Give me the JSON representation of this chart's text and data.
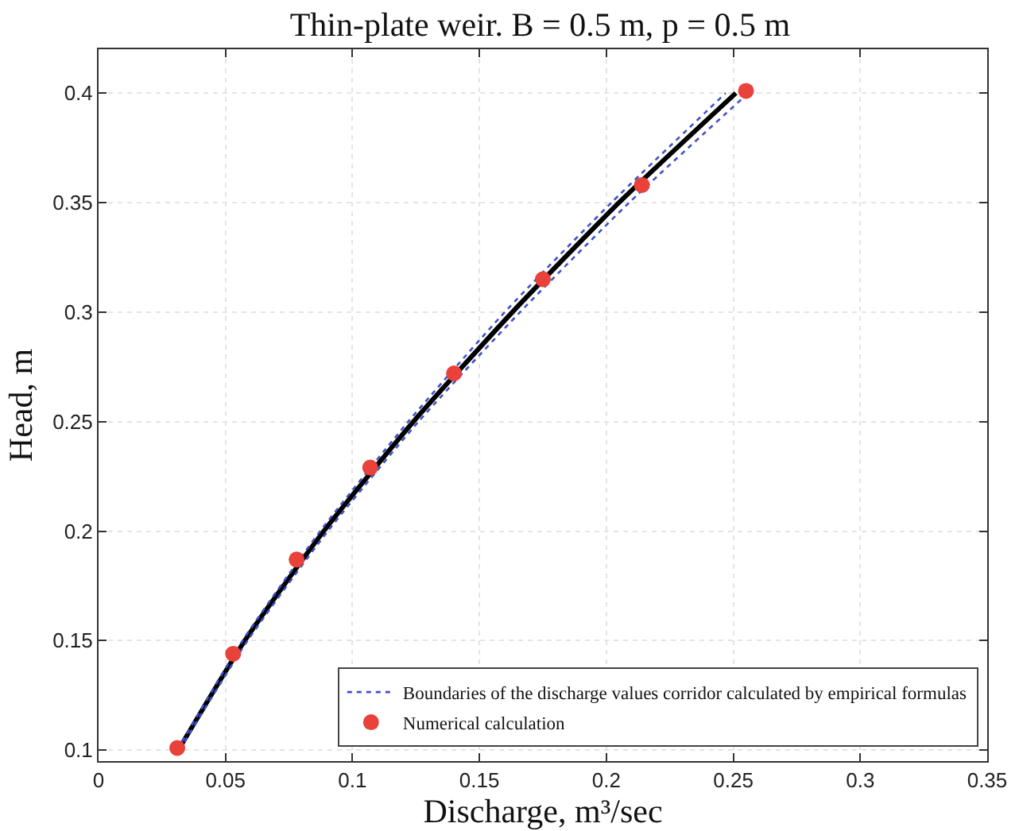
{
  "chart_data": {
    "type": "line",
    "title": "Thin-plate weir. B = 0.5 m, p = 0.5 m",
    "xlabel": "Discharge, m³/sec",
    "ylabel": "Head, m",
    "xlim": [
      0,
      0.35
    ],
    "xticks": [
      0,
      0.05,
      0.1,
      0.15,
      0.2,
      0.25,
      0.3,
      0.35
    ],
    "ylim": [
      0.095,
      0.42
    ],
    "yticks": [
      0.1,
      0.15,
      0.2,
      0.25,
      0.3,
      0.35,
      0.4
    ],
    "grid": true,
    "legend": "bottom right",
    "series": [
      {
        "color": "#000000",
        "line_style": "solid",
        "marker": "none",
        "x": [
          0.0314,
          0.0576,
          0.0887,
          0.124,
          0.163,
          0.205,
          0.251
        ],
        "values": [
          0.1,
          0.15,
          0.2,
          0.25,
          0.3,
          0.35,
          0.4
        ]
      },
      {
        "name": "Boundaries of the discharge values corridor calculated by empirical formulas",
        "color": "#3f51c8",
        "line_style": "dotted",
        "marker": "none",
        "x": [
          0.0309,
          0.0567,
          0.0873,
          0.122,
          0.16,
          0.202,
          0.247
        ],
        "values": [
          0.1,
          0.15,
          0.2,
          0.25,
          0.3,
          0.35,
          0.4
        ]
      },
      {
        "color": "#3f51c8",
        "line_style": "dotted",
        "marker": "none",
        "x": [
          0.0319,
          0.0587,
          0.0903,
          0.126,
          0.166,
          0.209,
          0.254
        ],
        "values": [
          0.1,
          0.15,
          0.2,
          0.25,
          0.3,
          0.35,
          0.398
        ]
      },
      {
        "type": "scatter",
        "name": "Numerical calculation",
        "color": "#e8423a",
        "marker": "circle",
        "x": [
          0.031,
          0.053,
          0.078,
          0.107,
          0.14,
          0.175,
          0.214,
          0.255
        ],
        "values": [
          0.101,
          0.144,
          0.187,
          0.229,
          0.272,
          0.315,
          0.358,
          0.401
        ]
      }
    ]
  }
}
